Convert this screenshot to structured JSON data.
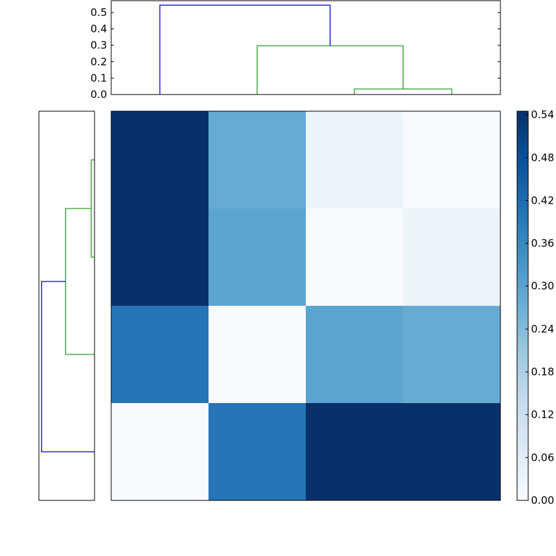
{
  "chart_data": [
    {
      "type": "dendrogram",
      "position": "top",
      "orientation": "vertical",
      "leaf_positions": [
        5,
        15,
        25,
        35
      ],
      "xlim": [
        0,
        40
      ],
      "ylim": [
        0,
        0.572
      ],
      "yticks": [
        "0.0",
        "0.1",
        "0.2",
        "0.3",
        "0.4",
        "0.5"
      ],
      "links": [
        {
          "x": [
            25,
            25,
            35,
            35
          ],
          "y": [
            0,
            0.034,
            0.034,
            0
          ],
          "color": "#2ca02c"
        },
        {
          "x": [
            15,
            15,
            30,
            30
          ],
          "y": [
            0,
            0.297,
            0.297,
            0.034
          ],
          "color": "#2ca02c"
        },
        {
          "x": [
            5,
            5,
            22.5,
            22.5
          ],
          "y": [
            0,
            0.545,
            0.545,
            0.297
          ],
          "color": "#0000ff"
        }
      ]
    },
    {
      "type": "dendrogram",
      "position": "left",
      "orientation": "horizontal",
      "leaf_positions": [
        5,
        15,
        25,
        35
      ],
      "ylim": [
        0,
        40
      ],
      "xlim": [
        0.572,
        0
      ],
      "links": [
        {
          "y": [
            5,
            5,
            15,
            15
          ],
          "x": [
            0,
            0.034,
            0.034,
            0
          ],
          "color": "#2ca02c"
        },
        {
          "y": [
            10,
            10,
            25,
            25
          ],
          "x": [
            0.034,
            0.297,
            0.297,
            0
          ],
          "color": "#2ca02c"
        },
        {
          "y": [
            17.5,
            17.5,
            35,
            35
          ],
          "x": [
            0.297,
            0.545,
            0.545,
            0
          ],
          "color": "#0000ff"
        }
      ]
    },
    {
      "type": "heatmap",
      "colormap": "Blues",
      "vmin": 0,
      "vmax": 0.545,
      "values": [
        [
          0.545,
          0.28,
          0.034,
          0.0
        ],
        [
          0.545,
          0.297,
          0.0,
          0.034
        ],
        [
          0.4,
          0.0,
          0.297,
          0.28
        ],
        [
          0.0,
          0.4,
          0.545,
          0.545
        ]
      ],
      "colorbar": {
        "ticks": [
          "0.00",
          "0.06",
          "0.12",
          "0.18",
          "0.24",
          "0.30",
          "0.36",
          "0.42",
          "0.48",
          "0.54"
        ]
      }
    }
  ]
}
